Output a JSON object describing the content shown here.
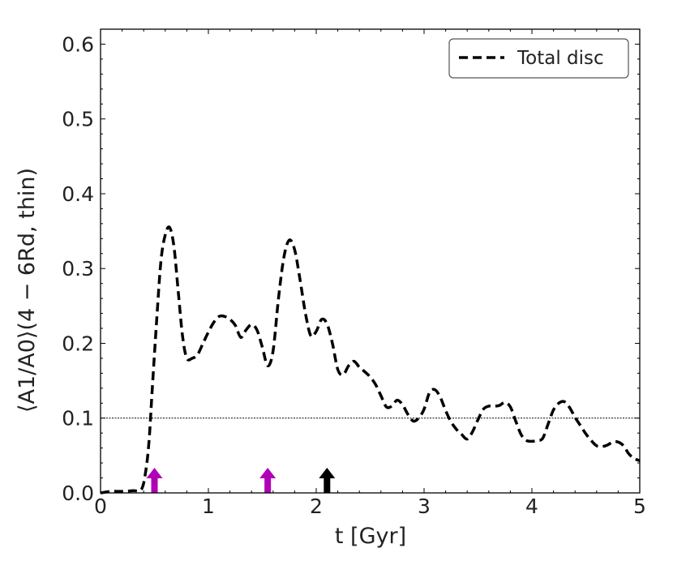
{
  "chart_data": {
    "type": "line",
    "xlabel": "t [Gyr]",
    "ylabel": "⟨A1/A0⟩(4 − 6Rd, thin)",
    "xlim": [
      0,
      5
    ],
    "ylim": [
      0,
      0.62
    ],
    "x_ticks": [
      "0",
      "1",
      "2",
      "3",
      "4",
      "5"
    ],
    "y_ticks": [
      "0.0",
      "0.1",
      "0.2",
      "0.3",
      "0.4",
      "0.5",
      "0.6"
    ],
    "grid": false,
    "legend_position": "top-right",
    "series": [
      {
        "name": "Total disc",
        "color": "#000000",
        "style": "dashed",
        "x": [
          0.0,
          0.1,
          0.2,
          0.3,
          0.38,
          0.42,
          0.45,
          0.48,
          0.52,
          0.56,
          0.6,
          0.64,
          0.68,
          0.72,
          0.76,
          0.8,
          0.85,
          0.9,
          0.95,
          1.0,
          1.05,
          1.1,
          1.15,
          1.2,
          1.25,
          1.3,
          1.35,
          1.4,
          1.45,
          1.5,
          1.55,
          1.6,
          1.65,
          1.7,
          1.75,
          1.8,
          1.85,
          1.9,
          1.95,
          2.0,
          2.05,
          2.1,
          2.15,
          2.2,
          2.25,
          2.3,
          2.35,
          2.4,
          2.45,
          2.5,
          2.55,
          2.6,
          2.65,
          2.7,
          2.75,
          2.8,
          2.85,
          2.9,
          2.95,
          3.0,
          3.05,
          3.1,
          3.15,
          3.2,
          3.25,
          3.3,
          3.35,
          3.4,
          3.45,
          3.5,
          3.55,
          3.6,
          3.65,
          3.7,
          3.75,
          3.8,
          3.85,
          3.9,
          3.95,
          4.0,
          4.05,
          4.1,
          4.15,
          4.2,
          4.25,
          4.3,
          4.35,
          4.4,
          4.45,
          4.5,
          4.55,
          4.6,
          4.65,
          4.7,
          4.75,
          4.8,
          4.85,
          4.9,
          4.95,
          5.0
        ],
        "values": [
          0.0,
          0.002,
          0.002,
          0.003,
          0.005,
          0.03,
          0.07,
          0.14,
          0.23,
          0.31,
          0.345,
          0.355,
          0.33,
          0.27,
          0.21,
          0.18,
          0.18,
          0.185,
          0.2,
          0.215,
          0.228,
          0.236,
          0.236,
          0.232,
          0.224,
          0.208,
          0.218,
          0.225,
          0.218,
          0.195,
          0.17,
          0.19,
          0.26,
          0.315,
          0.338,
          0.325,
          0.285,
          0.24,
          0.21,
          0.216,
          0.232,
          0.226,
          0.2,
          0.165,
          0.158,
          0.17,
          0.176,
          0.168,
          0.162,
          0.155,
          0.145,
          0.13,
          0.115,
          0.116,
          0.124,
          0.118,
          0.105,
          0.096,
          0.1,
          0.112,
          0.134,
          0.138,
          0.128,
          0.11,
          0.095,
          0.085,
          0.078,
          0.072,
          0.082,
          0.098,
          0.112,
          0.116,
          0.116,
          0.117,
          0.121,
          0.115,
          0.096,
          0.078,
          0.07,
          0.069,
          0.07,
          0.073,
          0.092,
          0.111,
          0.12,
          0.122,
          0.114,
          0.101,
          0.09,
          0.079,
          0.07,
          0.063,
          0.062,
          0.064,
          0.068,
          0.068,
          0.063,
          0.052,
          0.046,
          0.043
        ]
      }
    ],
    "reference_line": {
      "y": 0.1,
      "style": "dotted",
      "color": "#000000"
    },
    "markers": [
      {
        "x": 0.5,
        "color": "#b000b5"
      },
      {
        "x": 1.55,
        "color": "#b000b5"
      },
      {
        "x": 2.1,
        "color": "#000000"
      }
    ]
  },
  "legend": {
    "label": "Total disc"
  }
}
